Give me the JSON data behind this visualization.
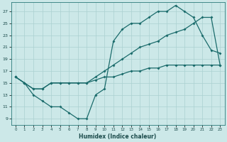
{
  "xlabel": "Humidex (Indice chaleur)",
  "bg_color": "#cce8e8",
  "grid_color": "#aad0d0",
  "line_color": "#1a6b6b",
  "xlim": [
    -0.5,
    23.5
  ],
  "ylim": [
    8.0,
    28.5
  ],
  "xticks": [
    0,
    1,
    2,
    3,
    4,
    5,
    6,
    7,
    8,
    9,
    10,
    11,
    12,
    13,
    14,
    15,
    16,
    17,
    18,
    19,
    20,
    21,
    22,
    23
  ],
  "yticks": [
    9,
    11,
    13,
    15,
    17,
    19,
    21,
    23,
    25,
    27
  ],
  "line1_x": [
    0,
    1,
    2,
    3,
    4,
    5,
    6,
    7,
    8,
    9,
    10,
    11,
    12,
    13,
    14,
    15,
    16,
    17,
    18,
    19,
    20,
    21,
    22,
    23
  ],
  "line1_y": [
    16,
    15,
    13,
    12,
    11,
    11,
    10,
    9,
    9,
    13,
    14,
    22,
    24,
    25,
    25,
    26,
    27,
    27,
    28,
    27,
    26,
    23,
    20.5,
    20
  ],
  "line2_x": [
    0,
    1,
    2,
    3,
    4,
    5,
    6,
    7,
    8,
    9,
    10,
    11,
    12,
    13,
    14,
    15,
    16,
    17,
    18,
    19,
    20,
    21,
    22,
    23
  ],
  "line2_y": [
    16,
    15,
    14,
    14,
    15,
    15,
    15,
    15,
    15,
    16,
    17,
    18,
    19,
    20,
    21,
    21.5,
    22,
    23,
    23.5,
    24,
    25,
    26,
    26,
    18
  ],
  "line3_x": [
    0,
    1,
    2,
    3,
    4,
    5,
    6,
    7,
    8,
    9,
    10,
    11,
    12,
    13,
    14,
    15,
    16,
    17,
    18,
    19,
    20,
    21,
    22,
    23
  ],
  "line3_y": [
    16,
    15,
    14,
    14,
    15,
    15,
    15,
    15,
    15,
    15.5,
    16,
    16,
    16.5,
    17,
    17,
    17.5,
    17.5,
    18,
    18,
    18,
    18,
    18,
    18,
    18
  ]
}
